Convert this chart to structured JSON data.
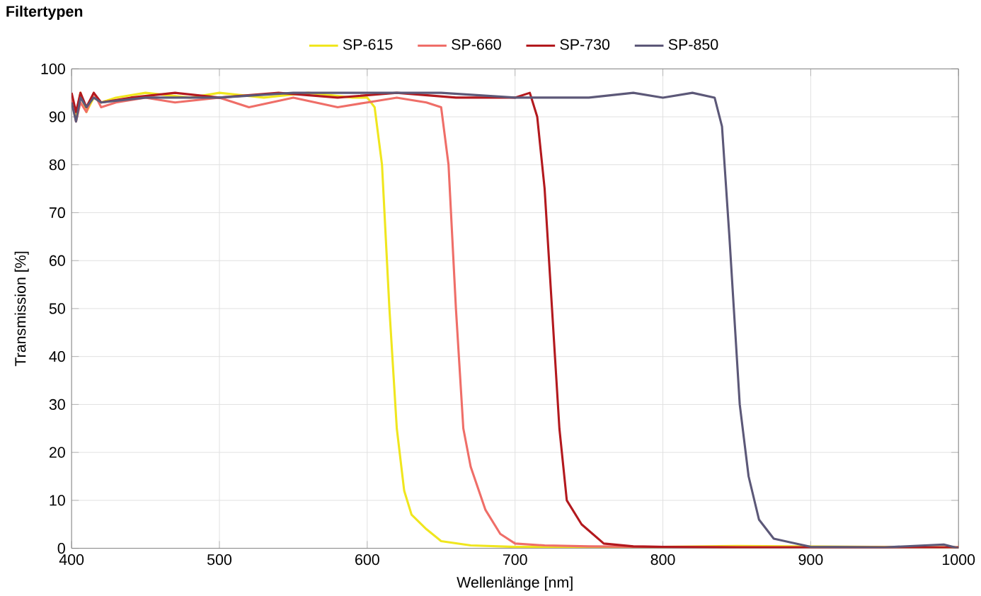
{
  "chart_data": {
    "type": "line",
    "title": "Filtertypen",
    "xlabel": "Wellenlänge [nm]",
    "ylabel": "Transmission [%]",
    "xlim": [
      400,
      1000
    ],
    "xticks": [
      400,
      500,
      600,
      700,
      800,
      900,
      1000
    ],
    "ylim": [
      0,
      100
    ],
    "yticks": [
      0,
      10,
      20,
      30,
      40,
      50,
      60,
      70,
      80,
      90,
      100
    ],
    "grid": true,
    "legend": "top",
    "marker": "none",
    "line_style": "solid",
    "series": [
      {
        "name": "SP-615",
        "color": "#f0e61e",
        "x": [
          400,
          403,
          406,
          410,
          415,
          420,
          430,
          450,
          480,
          500,
          530,
          560,
          590,
          600,
          605,
          610,
          615,
          620,
          625,
          630,
          640,
          650,
          670,
          700,
          750,
          800,
          850,
          900,
          1000
        ],
        "values": [
          93,
          90,
          95,
          91,
          94,
          93,
          94,
          95,
          94,
          95,
          94,
          95,
          94,
          94,
          92,
          80,
          50,
          25,
          12,
          7,
          4,
          1.5,
          0.6,
          0.3,
          0.3,
          0.3,
          0.5,
          null,
          0.2
        ]
      },
      {
        "name": "SP-660",
        "color": "#ef6e68",
        "x": [
          400,
          403,
          406,
          410,
          415,
          420,
          430,
          450,
          470,
          500,
          520,
          550,
          580,
          600,
          620,
          640,
          650,
          655,
          660,
          665,
          670,
          680,
          690,
          700,
          720,
          750,
          800,
          900,
          1000
        ],
        "values": [
          94,
          89,
          93,
          91,
          95,
          92,
          93,
          94,
          93,
          94,
          92,
          94,
          92,
          93,
          94,
          93,
          92,
          80,
          50,
          25,
          17,
          8,
          3,
          1,
          0.6,
          0.4,
          0.3,
          0.2,
          0.2
        ]
      },
      {
        "name": "SP-730",
        "color": "#b3191e",
        "x": [
          400,
          403,
          406,
          410,
          415,
          420,
          440,
          470,
          500,
          540,
          580,
          620,
          660,
          700,
          710,
          715,
          720,
          725,
          730,
          735,
          745,
          760,
          780,
          800,
          850,
          900,
          1000
        ],
        "values": [
          95,
          91,
          95,
          92,
          95,
          93,
          94,
          95,
          94,
          95,
          94,
          95,
          94,
          94,
          95,
          90,
          75,
          50,
          25,
          10,
          5,
          1,
          0.4,
          0.3,
          0.2,
          0.2,
          0.2
        ]
      },
      {
        "name": "SP-850",
        "color": "#5c5878",
        "x": [
          400,
          403,
          406,
          410,
          415,
          420,
          450,
          500,
          550,
          600,
          650,
          700,
          750,
          780,
          800,
          820,
          835,
          840,
          845,
          848,
          852,
          858,
          865,
          875,
          900,
          950,
          990,
          1000
        ],
        "values": [
          93,
          89,
          94,
          92,
          94,
          93,
          94,
          94,
          95,
          95,
          95,
          94,
          94,
          95,
          94,
          95,
          94,
          88,
          65,
          50,
          30,
          15,
          6,
          2,
          0.3,
          0.2,
          0.8,
          0
        ]
      }
    ]
  }
}
